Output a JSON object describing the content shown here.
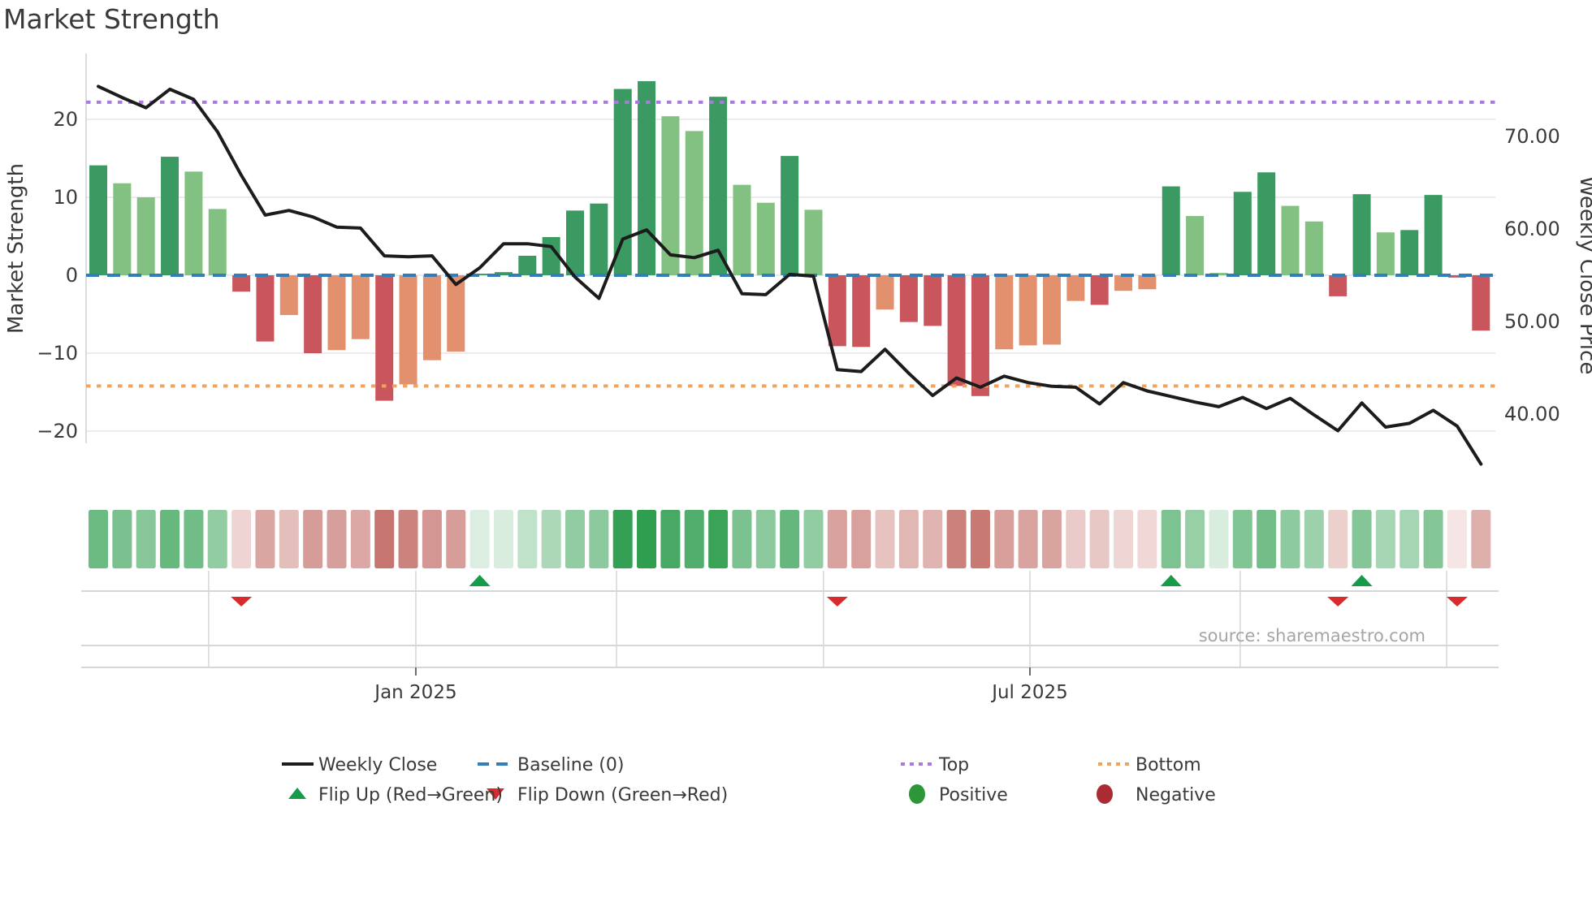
{
  "title": "Market Strength",
  "source_note": "source: sharemaestro.com",
  "axes": {
    "left_label": "Market Strength",
    "right_label": "Weekly Close Price",
    "left_ticks": [
      {
        "label": "20",
        "value": 20
      },
      {
        "label": "10",
        "value": 10
      },
      {
        "label": "0",
        "value": 0
      },
      {
        "label": "−10",
        "value": -10
      },
      {
        "label": "−20",
        "value": -20
      }
    ],
    "right_ticks": [
      {
        "label": "70.00",
        "value": 70
      },
      {
        "label": "60.00",
        "value": 60
      },
      {
        "label": "50.00",
        "value": 50
      },
      {
        "label": "40.00",
        "value": 40
      }
    ],
    "x_ticks": [
      {
        "label": "Jan 2025",
        "week": 13.32
      },
      {
        "label": "Jul 2025",
        "week": 39.08
      }
    ]
  },
  "legend": {
    "items": [
      {
        "label": "Weekly Close",
        "swatch": "line-black"
      },
      {
        "label": "Baseline (0)",
        "swatch": "dash-blue"
      },
      {
        "label": "Top",
        "swatch": "dot-purple"
      },
      {
        "label": "Bottom",
        "swatch": "dot-orange"
      },
      {
        "label": "Flip Up (Red→Green)",
        "swatch": "triangle-up-green"
      },
      {
        "label": "Flip Down (Green→Red)",
        "swatch": "triangle-down-red"
      },
      {
        "label": "Positive",
        "swatch": "circle-green"
      },
      {
        "label": "Negative",
        "swatch": "circle-dark-red"
      }
    ]
  },
  "colors": {
    "bar_green_dark": "#3b9a61",
    "bar_green_light": "#82c182",
    "bar_red_dark": "#c9565c",
    "bar_red_light": "#e2906e",
    "close_line": "#1c1c1c",
    "baseline": "#337eb8",
    "top_line": "#a87ae0",
    "bottom_line": "#f0a35e",
    "flip_up": "#169c49",
    "flip_down": "#d92b2b",
    "dot_positive": "#2c9639",
    "dot_negative": "#aa2b31",
    "heat_green": "#2f9e4f",
    "heat_red": "#c4706a",
    "grid": "#ececf0",
    "band_line": "#d6d6da",
    "spine": "#dcdce0",
    "text": "#3a3a3a",
    "muted_text": "#a5a5a5"
  },
  "chart_data": {
    "type": "bar+line",
    "x_unit": "week",
    "n_weeks": 59,
    "title": "Market Strength",
    "left_ylabel": "Market Strength",
    "right_ylabel": "Weekly Close Price",
    "left_ylim": [
      -28,
      28.5
    ],
    "right_axis_tick_values": [
      70,
      60,
      50,
      40
    ],
    "grid": "horizontal",
    "legend_position": "bottom",
    "strength": [
      14.1,
      11.8,
      10.0,
      15.2,
      13.3,
      8.5,
      -2.1,
      -8.5,
      -5.1,
      -10.0,
      -9.6,
      -8.2,
      -16.1,
      -14.0,
      -10.9,
      -9.8,
      0.2,
      0.4,
      2.5,
      4.9,
      8.3,
      9.2,
      23.9,
      24.9,
      20.4,
      18.5,
      22.9,
      11.6,
      9.3,
      15.3,
      8.4,
      -9.1,
      -9.2,
      -4.4,
      -6.0,
      -6.5,
      -14.2,
      -15.5,
      -9.5,
      -9.0,
      -8.9,
      -3.3,
      -3.8,
      -2.0,
      -1.8,
      11.4,
      7.6,
      0.3,
      10.7,
      13.2,
      8.9,
      6.9,
      -2.7,
      10.4,
      5.5,
      5.8,
      10.3,
      -0.3,
      -7.1
    ],
    "weekly_close": [
      75.4,
      74.2,
      73.1,
      75.1,
      74.0,
      70.5,
      65.8,
      61.5,
      62.0,
      61.3,
      60.2,
      60.1,
      57.1,
      57.0,
      57.1,
      54.0,
      55.8,
      58.4,
      58.4,
      58.1,
      54.8,
      52.5,
      58.9,
      59.9,
      57.2,
      56.9,
      57.7,
      53.0,
      52.9,
      55.1,
      54.9,
      44.8,
      44.6,
      47.0,
      44.4,
      42.0,
      43.9,
      42.9,
      44.1,
      43.4,
      43.0,
      42.9,
      41.1,
      43.4,
      42.5,
      41.9,
      41.3,
      40.8,
      41.8,
      40.6,
      41.7,
      39.9,
      38.2,
      41.2,
      38.6,
      39.0,
      40.4,
      38.7,
      34.6
    ],
    "reference_lines": {
      "baseline": {
        "label": "Baseline (0)",
        "value": 0
      },
      "top": {
        "label": "Top",
        "value": 22.2
      },
      "bottom": {
        "label": "Bottom",
        "value": -14.2
      }
    },
    "flip_up_weeks": [
      16,
      45,
      53
    ],
    "flip_down_weeks": [
      6,
      31,
      52,
      57
    ],
    "month_gridline_weeks": [
      4.63,
      13.32,
      21.74,
      30.42,
      39.08,
      47.9,
      56.56
    ],
    "heatmap": "strength values repeated as color strip below chart"
  }
}
